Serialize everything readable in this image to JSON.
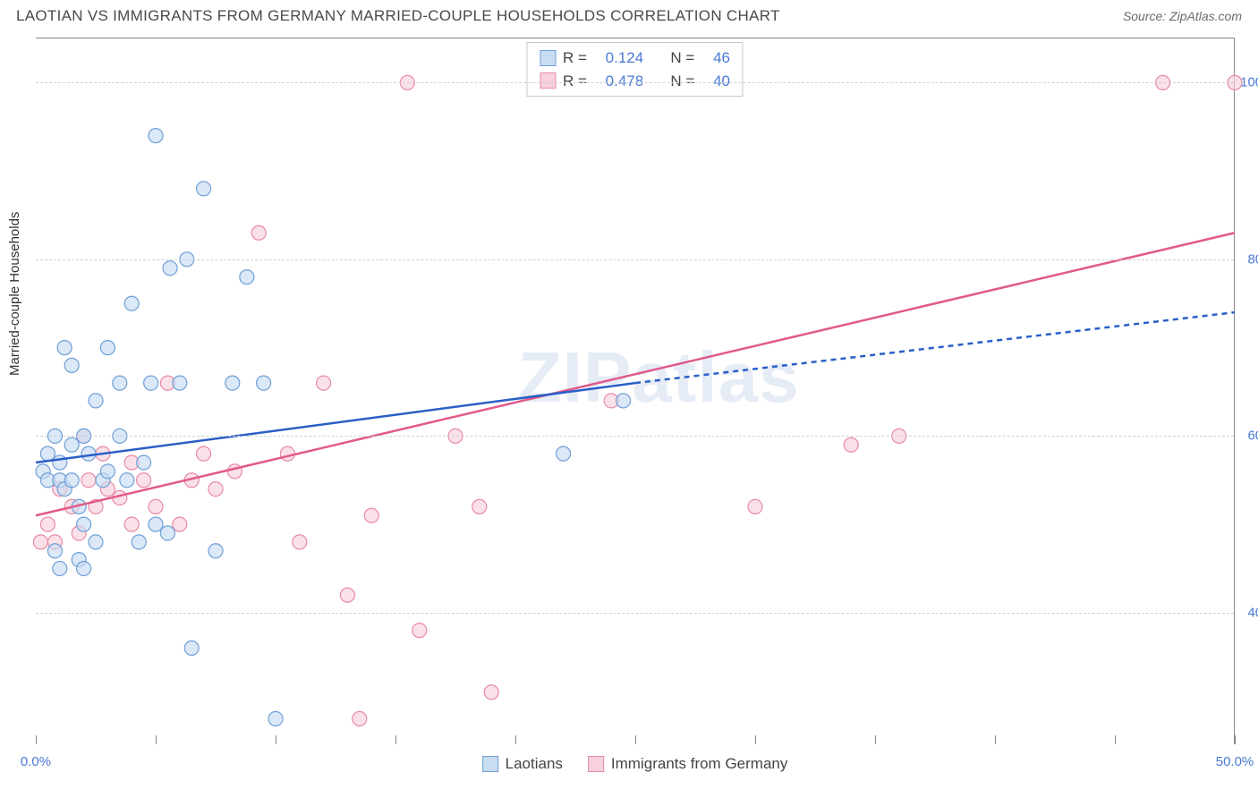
{
  "title": "LAOTIAN VS IMMIGRANTS FROM GERMANY MARRIED-COUPLE HOUSEHOLDS CORRELATION CHART",
  "source_label": "Source: ZipAtlas.com",
  "y_axis_label": "Married-couple Households",
  "watermark": "ZIPatlas",
  "colors": {
    "series_a_fill": "#c8dcf2",
    "series_a_stroke": "#6fa0d8",
    "series_b_fill": "#f7d1dc",
    "series_b_stroke": "#e88aa6",
    "trend_a": "#2a5fc7",
    "trend_b": "#e05a8a",
    "grid": "#cfcfcf",
    "axis_text": "#4a79d4",
    "text": "#4a4a4a"
  },
  "legend_top": {
    "rows": [
      {
        "r_label": "R =",
        "r_value": "0.124",
        "n_label": "N =",
        "n_value": "46",
        "swatch": "a"
      },
      {
        "r_label": "R =",
        "r_value": "0.478",
        "n_label": "N =",
        "n_value": "40",
        "swatch": "b"
      }
    ]
  },
  "legend_bottom": {
    "items": [
      {
        "label": "Laotians",
        "swatch": "a"
      },
      {
        "label": "Immigrants from Germany",
        "swatch": "b"
      }
    ]
  },
  "chart": {
    "type": "scatter",
    "xlim": [
      0,
      50
    ],
    "ylim": [
      25,
      105
    ],
    "x_ticks": [
      0,
      5,
      10,
      15,
      20,
      25,
      30,
      35,
      40,
      45,
      50
    ],
    "x_tick_labels": {
      "0": "0.0%",
      "50": "50.0%"
    },
    "y_gridlines": [
      40,
      60,
      80,
      100
    ],
    "y_tick_labels": {
      "40": "40.0%",
      "60": "60.0%",
      "80": "80.0%",
      "100": "100.0%"
    },
    "marker_radius": 8,
    "series_a": {
      "name": "Laotians",
      "points": [
        [
          0.3,
          56
        ],
        [
          0.5,
          55
        ],
        [
          0.5,
          58
        ],
        [
          0.8,
          47
        ],
        [
          0.8,
          60
        ],
        [
          1.0,
          45
        ],
        [
          1.0,
          55
        ],
        [
          1.0,
          57
        ],
        [
          1.2,
          54
        ],
        [
          1.2,
          70
        ],
        [
          1.5,
          55
        ],
        [
          1.5,
          59
        ],
        [
          1.5,
          68
        ],
        [
          1.8,
          46
        ],
        [
          1.8,
          52
        ],
        [
          2.0,
          60
        ],
        [
          2.0,
          45
        ],
        [
          2.0,
          50
        ],
        [
          2.2,
          58
        ],
        [
          2.5,
          48
        ],
        [
          2.5,
          64
        ],
        [
          2.8,
          55
        ],
        [
          3.0,
          56
        ],
        [
          3.0,
          70
        ],
        [
          3.5,
          60
        ],
        [
          3.5,
          66
        ],
        [
          3.8,
          55
        ],
        [
          4.0,
          75
        ],
        [
          4.3,
          48
        ],
        [
          4.5,
          57
        ],
        [
          4.8,
          66
        ],
        [
          5.0,
          50
        ],
        [
          5.0,
          94
        ],
        [
          5.5,
          49
        ],
        [
          5.6,
          79
        ],
        [
          6.0,
          66
        ],
        [
          6.3,
          80
        ],
        [
          6.5,
          36
        ],
        [
          7.0,
          88
        ],
        [
          7.5,
          47
        ],
        [
          8.2,
          66
        ],
        [
          8.8,
          78
        ],
        [
          9.5,
          66
        ],
        [
          10.0,
          28
        ],
        [
          22.0,
          58
        ],
        [
          24.5,
          64
        ]
      ],
      "trend": {
        "x1": 0,
        "y1": 57,
        "x2": 25,
        "y2": 66,
        "x2_ext": 50,
        "y2_ext": 74
      }
    },
    "series_b": {
      "name": "Immigrants from Germany",
      "points": [
        [
          0.2,
          48
        ],
        [
          0.5,
          50
        ],
        [
          0.8,
          48
        ],
        [
          1.0,
          54
        ],
        [
          1.5,
          52
        ],
        [
          1.8,
          49
        ],
        [
          2.0,
          60
        ],
        [
          2.2,
          55
        ],
        [
          2.5,
          52
        ],
        [
          2.8,
          58
        ],
        [
          3.0,
          54
        ],
        [
          3.5,
          53
        ],
        [
          4.0,
          50
        ],
        [
          4.0,
          57
        ],
        [
          4.5,
          55
        ],
        [
          5.0,
          52
        ],
        [
          5.5,
          66
        ],
        [
          6.0,
          50
        ],
        [
          6.5,
          55
        ],
        [
          7.0,
          58
        ],
        [
          7.5,
          54
        ],
        [
          8.3,
          56
        ],
        [
          9.3,
          83
        ],
        [
          10.5,
          58
        ],
        [
          11.0,
          48
        ],
        [
          12.0,
          66
        ],
        [
          13.0,
          42
        ],
        [
          13.5,
          28
        ],
        [
          14.0,
          51
        ],
        [
          15.5,
          100
        ],
        [
          16.0,
          38
        ],
        [
          17.5,
          60
        ],
        [
          18.5,
          52
        ],
        [
          19.0,
          31
        ],
        [
          24.0,
          64
        ],
        [
          30.0,
          52
        ],
        [
          34.0,
          59
        ],
        [
          36.0,
          60
        ],
        [
          47.0,
          100
        ],
        [
          50.0,
          100
        ]
      ],
      "trend": {
        "x1": 0,
        "y1": 51,
        "x2": 50,
        "y2": 83
      }
    }
  }
}
